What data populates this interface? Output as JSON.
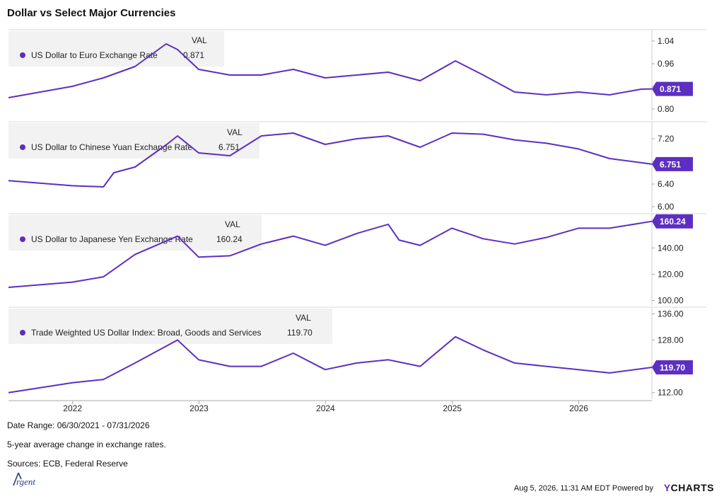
{
  "title": "Dollar vs Select Major Currencies",
  "val_header": "VAL",
  "accent_color": "#5c2fc2",
  "footer": {
    "date_range": "Date Range: 06/30/2021 - 07/31/2026",
    "note": "5-year average change in exchange rates.",
    "sources": "Sources: ECB, Federal Reserve",
    "timestamp": "Aug 5, 2026, 11:31 AM EDT Powered by",
    "brand_y": "Y",
    "brand_rest": "CHARTS",
    "logo_text": "Argent"
  },
  "chart_data": {
    "type": "line",
    "x_range": [
      "2021-06-30",
      "2026-07-31"
    ],
    "x_ticks": [
      "2022",
      "2023",
      "2024",
      "2025",
      "2026"
    ],
    "panels": [
      {
        "legend": "US Dollar to Euro Exchange Rate",
        "value_label": "0.871",
        "ylim": [
          0.76,
          1.08
        ],
        "yticks": [
          "1.04",
          "0.96",
          "0.88",
          "0.80"
        ],
        "ytick_values": [
          1.04,
          0.96,
          0.88,
          0.8
        ],
        "x": [
          "2021-06-30",
          "2021-09-30",
          "2021-12-31",
          "2022-03-31",
          "2022-06-30",
          "2022-09-28",
          "2022-10-31",
          "2022-12-31",
          "2023-03-31",
          "2023-06-30",
          "2023-09-30",
          "2023-12-31",
          "2024-03-31",
          "2024-06-30",
          "2024-09-30",
          "2025-01-10",
          "2025-03-31",
          "2025-06-30",
          "2025-09-30",
          "2025-12-31",
          "2026-03-31",
          "2026-06-30",
          "2026-07-31"
        ],
        "y": [
          0.84,
          0.86,
          0.88,
          0.91,
          0.95,
          1.03,
          1.01,
          0.94,
          0.92,
          0.92,
          0.94,
          0.91,
          0.92,
          0.93,
          0.9,
          0.97,
          0.92,
          0.86,
          0.85,
          0.86,
          0.85,
          0.87,
          0.871
        ]
      },
      {
        "legend": "US Dollar to Chinese Yuan Exchange Rate",
        "value_label": "6.751",
        "ylim": [
          5.9,
          7.5
        ],
        "yticks": [
          "7.20",
          "6.80",
          "6.40",
          "6.00"
        ],
        "ytick_values": [
          7.2,
          6.8,
          6.4,
          6.0
        ],
        "x": [
          "2021-06-30",
          "2021-12-31",
          "2022-03-31",
          "2022-04-30",
          "2022-06-30",
          "2022-09-30",
          "2022-10-31",
          "2022-12-31",
          "2023-03-31",
          "2023-06-30",
          "2023-09-30",
          "2023-12-31",
          "2024-03-31",
          "2024-06-30",
          "2024-09-30",
          "2024-12-31",
          "2025-03-31",
          "2025-06-30",
          "2025-09-30",
          "2025-12-31",
          "2026-03-31",
          "2026-07-31"
        ],
        "y": [
          6.46,
          6.37,
          6.35,
          6.6,
          6.7,
          7.1,
          7.25,
          6.95,
          6.9,
          7.25,
          7.3,
          7.1,
          7.2,
          7.25,
          7.05,
          7.3,
          7.28,
          7.18,
          7.12,
          7.02,
          6.85,
          6.751
        ]
      },
      {
        "legend": "US Dollar to Japanese Yen Exchange Rate",
        "value_label": "160.24",
        "ylim": [
          96,
          166
        ],
        "yticks": [
          "160.00",
          "140.00",
          "120.00",
          "100.00"
        ],
        "ytick_values": [
          160,
          140,
          120,
          100
        ],
        "x": [
          "2021-06-30",
          "2021-12-31",
          "2022-03-31",
          "2022-06-30",
          "2022-10-31",
          "2022-12-31",
          "2023-03-31",
          "2023-06-30",
          "2023-09-30",
          "2023-12-31",
          "2024-03-31",
          "2024-06-30",
          "2024-07-31",
          "2024-09-30",
          "2024-12-31",
          "2025-03-31",
          "2025-06-30",
          "2025-09-30",
          "2025-12-31",
          "2026-03-31",
          "2026-07-31"
        ],
        "y": [
          110,
          114,
          118,
          135,
          149,
          133,
          134,
          143,
          149,
          142,
          151,
          158,
          146,
          142,
          155,
          147,
          143,
          148,
          155,
          155,
          160.24
        ]
      },
      {
        "legend": "Trade Weighted US Dollar Index: Broad, Goods and Services",
        "value_label": "119.70",
        "ylim": [
          110,
          138
        ],
        "yticks": [
          "136.00",
          "128.00",
          "120.00",
          "112.00"
        ],
        "ytick_values": [
          136,
          128,
          120,
          112
        ],
        "x": [
          "2021-06-30",
          "2021-12-31",
          "2022-03-31",
          "2022-06-30",
          "2022-10-31",
          "2022-12-31",
          "2023-03-31",
          "2023-06-30",
          "2023-09-30",
          "2023-12-31",
          "2024-03-31",
          "2024-06-30",
          "2024-09-30",
          "2025-01-10",
          "2025-03-31",
          "2025-06-30",
          "2025-09-30",
          "2025-12-31",
          "2026-03-31",
          "2026-07-31"
        ],
        "y": [
          112,
          115,
          116,
          121,
          128,
          122,
          120,
          120,
          124,
          119,
          121,
          122,
          120,
          129,
          125,
          121,
          120,
          119,
          118,
          119.7
        ]
      }
    ]
  }
}
